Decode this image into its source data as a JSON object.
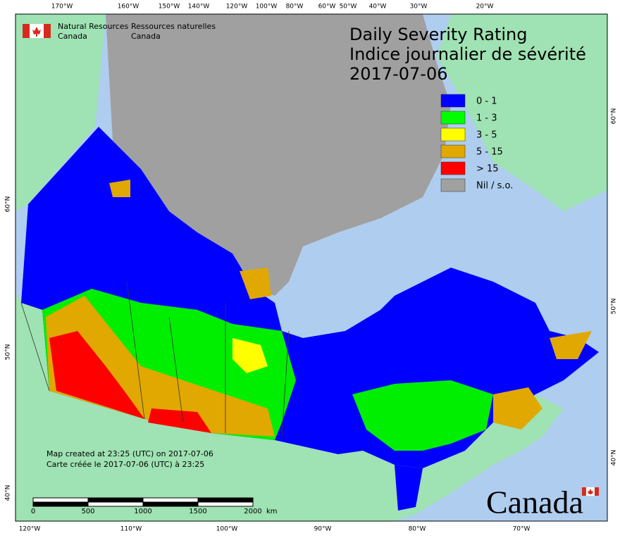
{
  "header": {
    "org_en": [
      "Natural Resources",
      "Canada"
    ],
    "org_fr": [
      "Ressources naturelles",
      "Canada"
    ]
  },
  "title": [
    "Daily Severity Rating",
    "Indice journalier de sévérité",
    "2017-07-06"
  ],
  "legend": [
    {
      "label": "0 - 1",
      "color": "#0000ff"
    },
    {
      "label": "1 - 3",
      "color": "#00ff00"
    },
    {
      "label": "3 - 5",
      "color": "#ffff00"
    },
    {
      "label": "5 - 15",
      "color": "#e0a800"
    },
    {
      "label": "> 15",
      "color": "#ff0000"
    },
    {
      "label": "Nil / s.o.",
      "color": "#a0a0a0"
    }
  ],
  "graticule": {
    "top": [
      "170°W",
      "160°W",
      "150°W",
      "140°W",
      "120°W",
      "100°W",
      "80°W",
      "60°W",
      "50°W",
      "40°W",
      "30°W",
      "20°W"
    ],
    "bottom": [
      "120°W",
      "110°W",
      "100°W",
      "90°W",
      "80°W",
      "70°W"
    ],
    "left": [
      "60°N",
      "50°N",
      "40°N"
    ],
    "right": [
      "60°N",
      "50°N",
      "40°N"
    ]
  },
  "credit": [
    "Map created at 23:25 (UTC) on 2017-07-06",
    "Carte créée le 2017-07-06 (UTC) à 23:25"
  ],
  "scale_bar": {
    "ticks": [
      0,
      500,
      1000,
      1500,
      2000
    ],
    "unit": "km"
  },
  "wordmark": "Canada"
}
